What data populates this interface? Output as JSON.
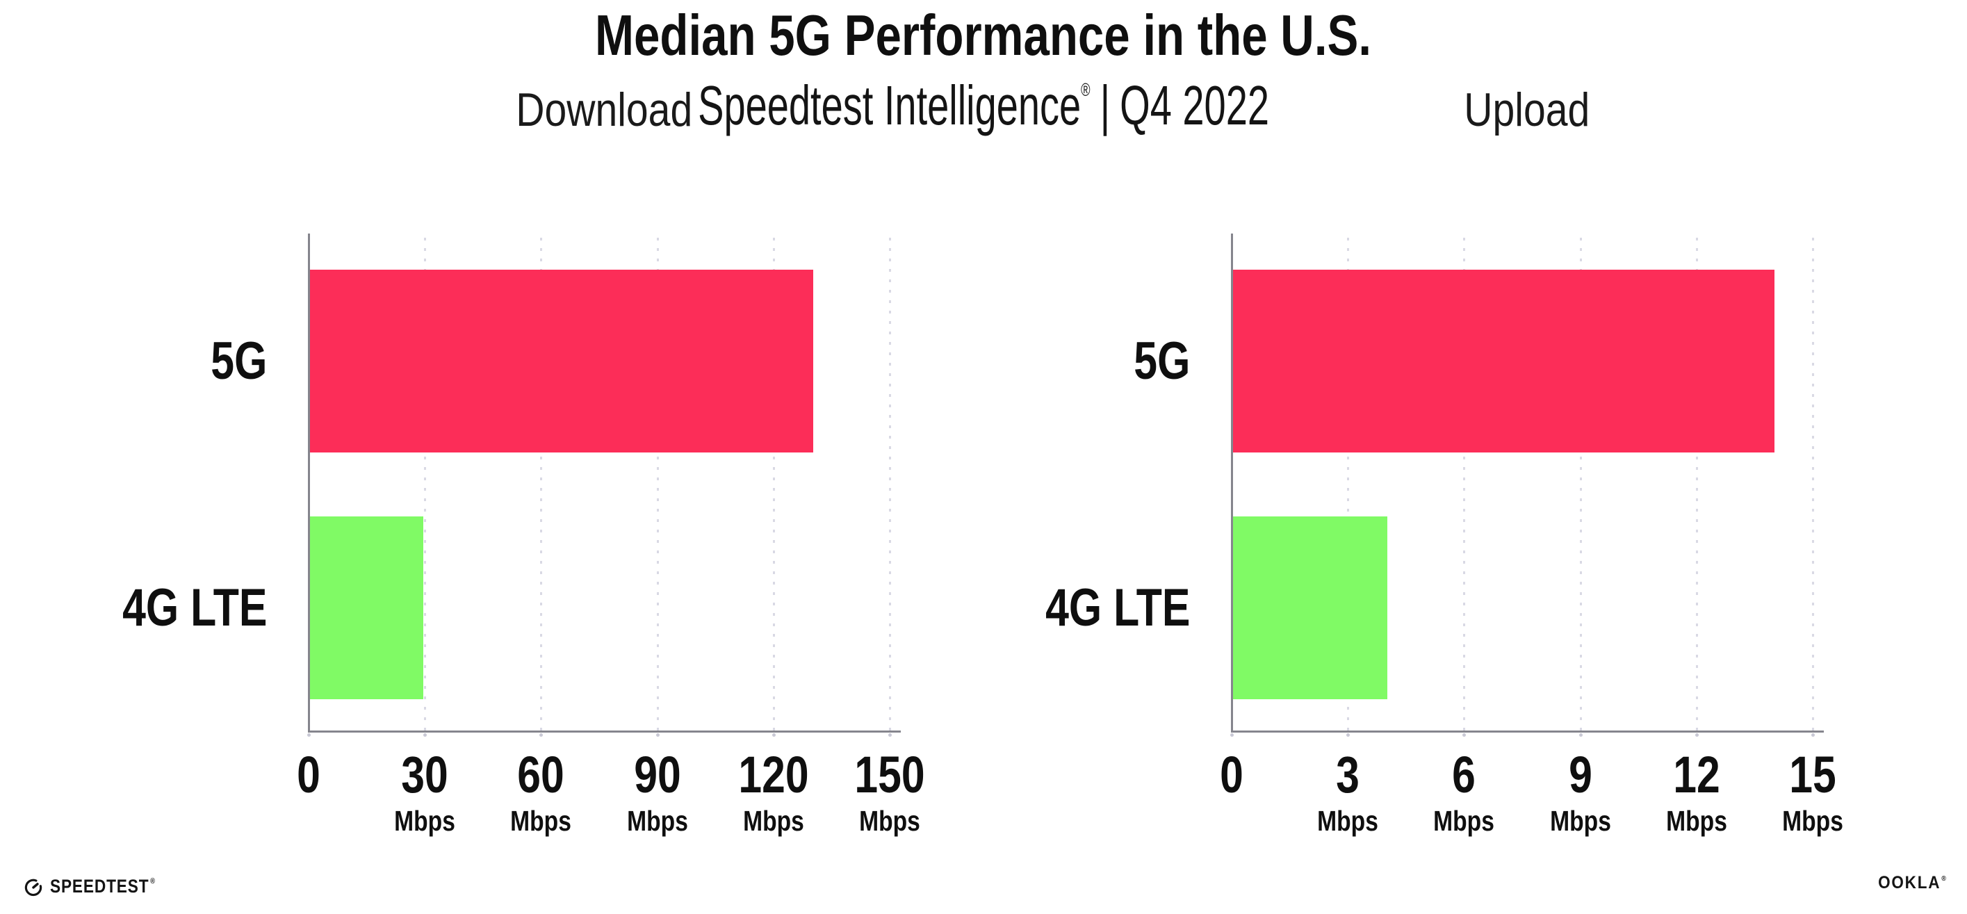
{
  "header": {
    "title": "Median 5G Performance in the U.S.",
    "subtitle_product": "Speedtest Intelligence",
    "subtitle_registered": "®",
    "subtitle_separator": "|",
    "subtitle_period": "Q4 2022"
  },
  "footer": {
    "speedtest_label": "SPEEDTEST",
    "speedtest_mark": "®",
    "ookla_label": "OOKLA",
    "ookla_mark": "®"
  },
  "colors": {
    "bar_5g": "#FC2D58",
    "bar_4g_lte": "#80FA65",
    "axis_line": "#85858D",
    "gridline": "#D9D9E4",
    "text": "#0F0F0F"
  },
  "chart_data": [
    {
      "type": "bar",
      "orientation": "horizontal",
      "title": "Download",
      "categories": [
        "5G",
        "4G LTE"
      ],
      "values": [
        130,
        29.5
      ],
      "unit": "Mbps",
      "xticks": [
        0,
        30,
        60,
        90,
        120,
        150
      ],
      "xlim": [
        0,
        152.5
      ],
      "grid": "vertical-dotted",
      "legend": "none",
      "bar_colors": [
        "#FC2D58",
        "#80FA65"
      ]
    },
    {
      "type": "bar",
      "orientation": "horizontal",
      "title": "Upload",
      "categories": [
        "5G",
        "4G LTE"
      ],
      "values": [
        14,
        4
      ],
      "unit": "Mbps",
      "xticks": [
        0,
        3,
        6,
        9,
        12,
        15
      ],
      "xlim": [
        0,
        15.25
      ],
      "grid": "vertical-dotted",
      "legend": "none",
      "bar_colors": [
        "#FC2D58",
        "#80FA65"
      ]
    }
  ]
}
